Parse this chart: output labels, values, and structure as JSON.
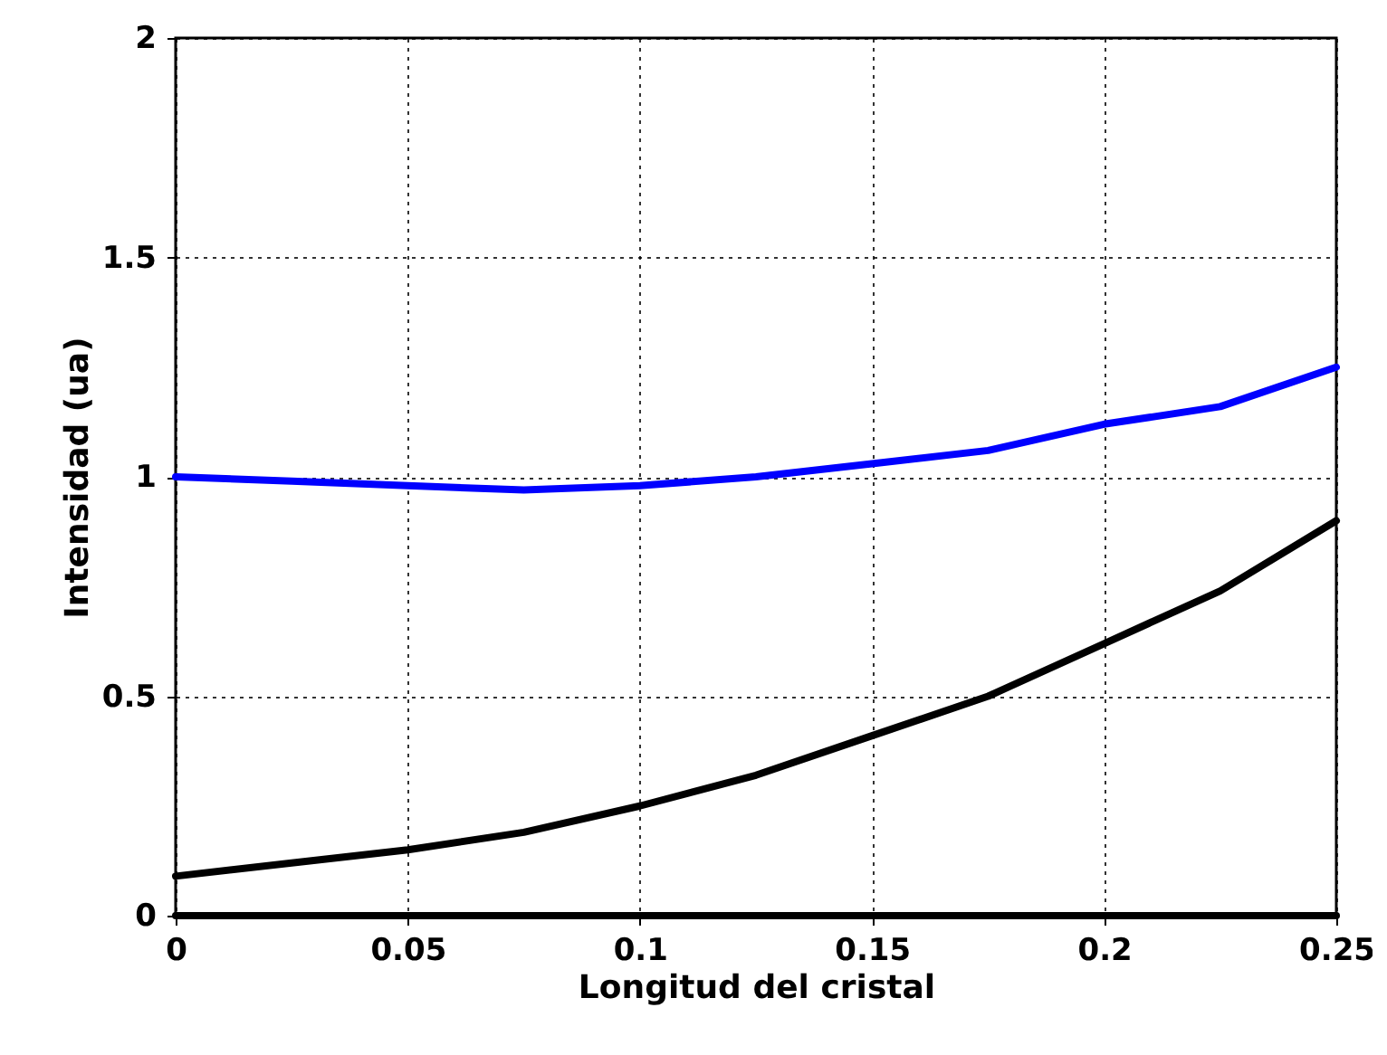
{
  "chart_data": {
    "type": "line",
    "xlabel": "Longitud del cristal",
    "ylabel": "Intensidad (ua)",
    "x": [
      0,
      0.025,
      0.05,
      0.075,
      0.1,
      0.125,
      0.15,
      0.175,
      0.2,
      0.225,
      0.25
    ],
    "series": [
      {
        "color": "#0000ff",
        "values": [
          1.0,
          0.99,
          0.98,
          0.97,
          0.98,
          1.0,
          1.03,
          1.06,
          1.12,
          1.16,
          1.25
        ]
      },
      {
        "color": "#000000",
        "values": [
          0.09,
          0.12,
          0.15,
          0.19,
          0.25,
          0.32,
          0.41,
          0.5,
          0.62,
          0.74,
          0.9
        ]
      },
      {
        "color": "#000000",
        "values": [
          0,
          0,
          0,
          0,
          0,
          0,
          0,
          0,
          0,
          0,
          0
        ]
      }
    ],
    "xlim": [
      0,
      0.25
    ],
    "xticks": [
      0,
      0.05,
      0.1,
      0.15,
      0.2,
      0.25
    ],
    "ylim": [
      0,
      2
    ],
    "yticks": [
      0,
      0.5,
      1,
      1.5,
      2
    ],
    "grid": true,
    "marker": "none",
    "line_style": "solid"
  }
}
